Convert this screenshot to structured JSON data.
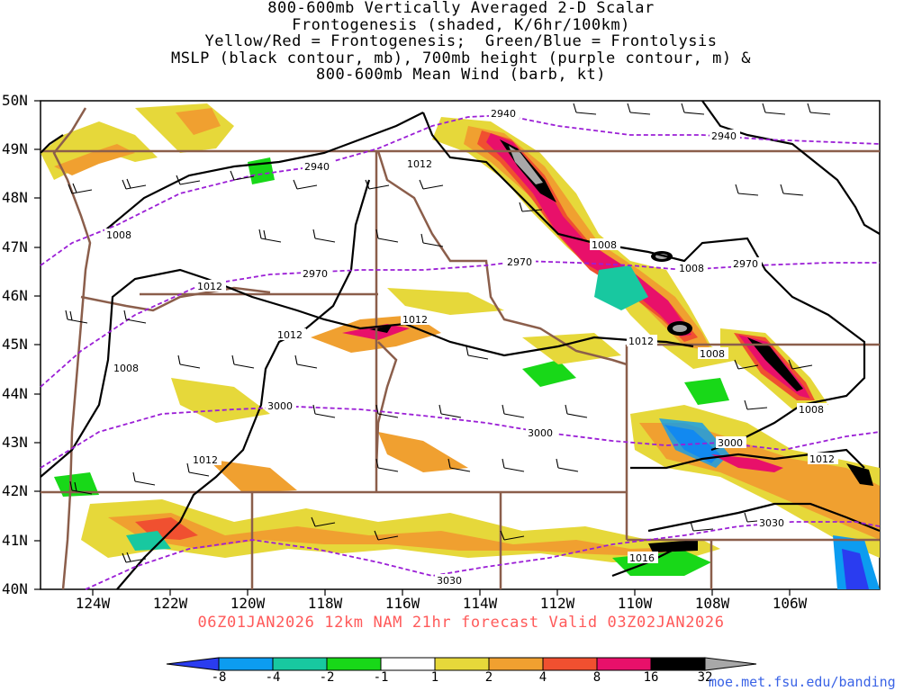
{
  "title_lines": [
    "800-600mb Vertically Averaged 2-D Scalar",
    "Frontogenesis (shaded, K/6hr/100km)",
    "Yellow/Red = Frontogenesis;  Green/Blue = Frontolysis",
    "MSLP (black contour, mb), 700mb height (purple contour, m) &",
    "800-600mb Mean Wind (barb, kt)"
  ],
  "lat_labels": [
    "50N",
    "49N",
    "48N",
    "47N",
    "46N",
    "45N",
    "44N",
    "43N",
    "42N",
    "41N",
    "40N"
  ],
  "lon_labels": [
    "124W",
    "122W",
    "120W",
    "118W",
    "116W",
    "114W",
    "112W",
    "110W",
    "108W",
    "106W"
  ],
  "footer": "06Z01JAN2026 12km NAM 21hr forecast Valid 03Z02JAN2026",
  "colorbar": {
    "labels": [
      "-8",
      "-4",
      "-2",
      "-1",
      "1",
      "2",
      "4",
      "8",
      "16",
      "32"
    ],
    "colors": [
      "#2a3cf0",
      "#0c9cf0",
      "#18c8a0",
      "#14b878",
      "#18d818",
      "#ffffff",
      "#e6d83a",
      "#f0a030",
      "#f05030",
      "#e8106a",
      "#000000",
      "#a8a8a8"
    ]
  },
  "mslp_labels": [
    "1012",
    "1008",
    "1012",
    "1008",
    "1008",
    "1012",
    "1008",
    "1012",
    "1012",
    "1008",
    "1008",
    "1012",
    "1016",
    "1012"
  ],
  "height_labels": [
    "2940",
    "2940",
    "2940",
    "2970",
    "2970",
    "2970",
    "3000",
    "3000",
    "3000",
    "3030",
    "3030"
  ],
  "credit": "moe.met.fsu.edu/banding"
}
